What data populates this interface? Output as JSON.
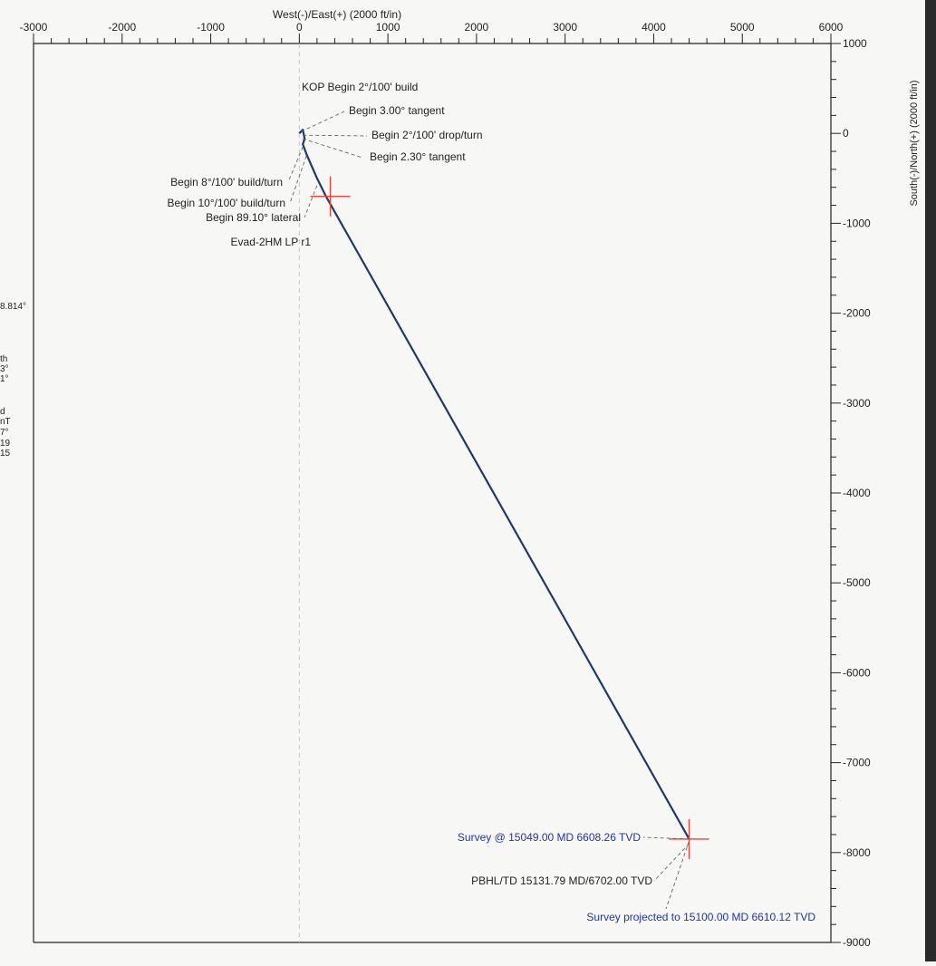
{
  "chart_data": {
    "type": "line",
    "xlabel": "West(-)/East(+) (2000 ft/in)",
    "ylabel": "South(-)/North(+) (2000 ft/in)",
    "xlim": [
      -3000,
      6000
    ],
    "ylim": [
      -9000,
      1000
    ],
    "x_ticks": [
      -3000,
      -2000,
      -1000,
      0,
      1000,
      2000,
      3000,
      4000,
      5000,
      6000
    ],
    "y_ticks": [
      1000,
      0,
      -1000,
      -2000,
      -3000,
      -4000,
      -5000,
      -6000,
      -7000,
      -8000,
      -9000
    ],
    "grid": false,
    "series": [
      {
        "values": [
          {
            "x": 0,
            "y": 0
          },
          {
            "x": 40,
            "y": 40
          },
          {
            "x": 60,
            "y": -60
          },
          {
            "x": 40,
            "y": -120
          },
          {
            "x": 80,
            "y": -230
          },
          {
            "x": 200,
            "y": -500
          },
          {
            "x": 300,
            "y": -700
          },
          {
            "x": 4400,
            "y": -7850
          }
        ]
      }
    ],
    "markers": [
      {
        "label": "Evad-2HM LP r1",
        "x": 350,
        "y": -700
      },
      {
        "label": "Survey @ 15049.00 MD 6608.26 TVD",
        "x": 4400,
        "y": -7850
      }
    ],
    "annotations": [
      {
        "text": "KOP Begin 2°/100' build",
        "color": "#222222",
        "x": 0,
        "y": 50
      },
      {
        "text": "Begin 3.00° tangent",
        "color": "#222222",
        "x": 20,
        "y": 20
      },
      {
        "text": "Begin 2°/100' drop/turn",
        "color": "#222222",
        "x": 40,
        "y": -20
      },
      {
        "text": "Begin 2.30° tangent",
        "color": "#222222",
        "x": 40,
        "y": -60
      },
      {
        "text": "Begin 8°/100' build/turn",
        "color": "#222222",
        "x": 40,
        "y": -150
      },
      {
        "text": "Begin 10°/100' build/turn",
        "color": "#222222",
        "x": 80,
        "y": -250
      },
      {
        "text": "Begin 89.10° lateral",
        "color": "#222222",
        "x": 200,
        "y": -580
      },
      {
        "text": "Evad-2HM LP r1",
        "color": "#222222",
        "x": 350,
        "y": -700
      },
      {
        "text": "Survey @ 15049.00 MD 6608.26 TVD",
        "color": "#2233aa",
        "x": 4400,
        "y": -7850
      },
      {
        "text": "PBHL/TD 15131.79 MD/6702.00 TVD",
        "color": "#222222",
        "x": 4400,
        "y": -7900
      },
      {
        "text": "Survey projected to 15100.00 MD 6610.12 TVD",
        "color": "#2233aa",
        "x": 4400,
        "y": -7870
      }
    ]
  },
  "colors": {
    "trajectory": "#1f3a68",
    "target_marker": "#e8453a",
    "axis": "#222222",
    "blue_text": "#2233aa"
  },
  "left_fragments": [
    "8.814°",
    "th",
    "3°",
    "1°",
    "d",
    "nT",
    "7°",
    "19",
    "15"
  ]
}
